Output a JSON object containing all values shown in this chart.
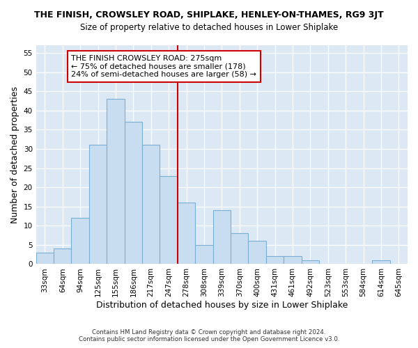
{
  "title1": "THE FINISH, CROWSLEY ROAD, SHIPLAKE, HENLEY-ON-THAMES, RG9 3JT",
  "title2": "Size of property relative to detached houses in Lower Shiplake",
  "xlabel": "Distribution of detached houses by size in Lower Shiplake",
  "ylabel": "Number of detached properties",
  "bar_labels": [
    "33sqm",
    "64sqm",
    "94sqm",
    "125sqm",
    "155sqm",
    "186sqm",
    "217sqm",
    "247sqm",
    "278sqm",
    "308sqm",
    "339sqm",
    "370sqm",
    "400sqm",
    "431sqm",
    "461sqm",
    "492sqm",
    "523sqm",
    "553sqm",
    "584sqm",
    "614sqm",
    "645sqm"
  ],
  "bar_values": [
    3,
    4,
    12,
    31,
    43,
    37,
    31,
    23,
    16,
    5,
    14,
    8,
    6,
    2,
    2,
    1,
    0,
    0,
    0,
    1,
    0
  ],
  "bar_color": "#c8ddf0",
  "bar_edge_color": "#7aafd4",
  "vline_color": "#cc0000",
  "annotation_title": "THE FINISH CROWSLEY ROAD: 275sqm",
  "annotation_line1": "← 75% of detached houses are smaller (178)",
  "annotation_line2": "24% of semi-detached houses are larger (58) →",
  "annotation_box_color": "#ffffff",
  "annotation_box_edge_color": "#cc0000",
  "ylim": [
    0,
    57
  ],
  "yticks": [
    0,
    5,
    10,
    15,
    20,
    25,
    30,
    35,
    40,
    45,
    50,
    55
  ],
  "fig_bg_color": "#ffffff",
  "plot_bg_color": "#dce9f5",
  "footer1": "Contains HM Land Registry data © Crown copyright and database right 2024.",
  "footer2": "Contains public sector information licensed under the Open Government Licence v3.0."
}
